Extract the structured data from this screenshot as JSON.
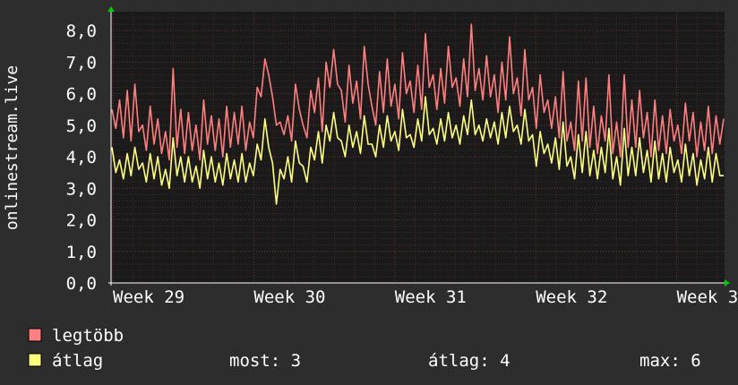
{
  "chart_data": {
    "type": "line",
    "ylabel": "onlinestream.live",
    "ylim": [
      0,
      8.6
    ],
    "y_ticks": [
      "0,0",
      "1,0",
      "2,0",
      "3,0",
      "4,0",
      "5,0",
      "6,0",
      "7,0",
      "8,0"
    ],
    "x_ticks": [
      "Week 29",
      "Week 30",
      "Week 31",
      "Week 32",
      "Week 3"
    ],
    "grid": true,
    "legend_position": "bottom-left",
    "series": [
      {
        "name": "legtöbb",
        "color": "#ff7f7f",
        "values": [
          5.5,
          4.9,
          5.8,
          4.6,
          6.1,
          4.5,
          6.3,
          4.8,
          5.0,
          4.2,
          5.6,
          4.4,
          5.2,
          4.1,
          4.8,
          3.9,
          6.8,
          4.3,
          5.5,
          4.1,
          5.4,
          4.2,
          5.0,
          3.9,
          5.8,
          4.4,
          5.3,
          4.2,
          5.2,
          4.0,
          5.6,
          4.3,
          5.4,
          4.4,
          5.6,
          4.2,
          5.1,
          4.6,
          6.2,
          5.9,
          7.1,
          6.6,
          5.9,
          5.0,
          5.1,
          4.7,
          5.3,
          4.5,
          6.3,
          5.5,
          5.0,
          4.6,
          6.1,
          5.4,
          6.5,
          4.8,
          7.0,
          6.2,
          7.4,
          6.3,
          6.1,
          5.1,
          6.9,
          5.7,
          6.4,
          5.2,
          7.5,
          6.3,
          5.6,
          5.0,
          6.7,
          5.4,
          7.1,
          5.6,
          6.3,
          5.2,
          7.3,
          6.0,
          6.4,
          5.4,
          6.9,
          5.5,
          7.9,
          6.2,
          6.6,
          5.5,
          6.8,
          5.7,
          7.5,
          6.2,
          6.5,
          5.6,
          7.1,
          5.9,
          8.2,
          6.1,
          6.8,
          5.8,
          7.2,
          5.9,
          6.6,
          5.4,
          7.0,
          5.8,
          7.8,
          6.0,
          6.5,
          5.3,
          7.4,
          5.8,
          6.2,
          4.9,
          6.6,
          5.4,
          5.8,
          4.9,
          5.9,
          4.6,
          6.7,
          4.5,
          5.1,
          4.2,
          6.4,
          4.5,
          6.5,
          4.3,
          5.6,
          4.1,
          5.3,
          4.5,
          6.6,
          4.1,
          5.1,
          4.0,
          6.6,
          4.3,
          5.8,
          4.3,
          6.1,
          4.6,
          5.4,
          4.0,
          5.8,
          4.2,
          5.3,
          4.1,
          5.5,
          4.5,
          5.0,
          4.1,
          5.7,
          4.5,
          5.4,
          4.0,
          5.1,
          4.2,
          5.6,
          4.1,
          5.3,
          4.4,
          5.2
        ]
      },
      {
        "name": "átlag",
        "color": "#ffff7f",
        "values": [
          4.3,
          3.5,
          3.9,
          3.3,
          4.1,
          3.4,
          4.3,
          3.6,
          3.8,
          3.2,
          4.1,
          3.3,
          4.0,
          3.1,
          3.6,
          3.0,
          4.6,
          3.4,
          4.0,
          3.2,
          4.0,
          3.2,
          3.7,
          3.0,
          4.2,
          3.3,
          4.0,
          3.2,
          3.8,
          3.1,
          4.1,
          3.3,
          3.9,
          3.2,
          4.1,
          3.2,
          3.8,
          3.4,
          4.4,
          3.9,
          5.2,
          4.3,
          3.8,
          2.5,
          3.6,
          3.3,
          4.0,
          3.2,
          4.5,
          3.8,
          3.7,
          3.2,
          4.3,
          3.9,
          4.8,
          3.8,
          5.0,
          4.5,
          5.4,
          4.6,
          4.5,
          4.0,
          5.0,
          4.3,
          4.8,
          4.1,
          5.3,
          4.4,
          4.4,
          4.0,
          5.0,
          4.3,
          5.3,
          4.5,
          4.8,
          4.2,
          5.5,
          4.6,
          4.7,
          4.3,
          5.2,
          4.5,
          5.9,
          4.7,
          4.9,
          4.4,
          5.2,
          4.5,
          5.4,
          4.6,
          5.0,
          4.4,
          5.3,
          4.7,
          5.8,
          4.7,
          5.0,
          4.5,
          5.2,
          4.6,
          5.1,
          4.4,
          5.4,
          4.6,
          5.6,
          4.8,
          5.0,
          4.4,
          5.5,
          4.5,
          4.7,
          3.7,
          4.8,
          4.1,
          4.4,
          3.8,
          4.6,
          3.6,
          5.1,
          3.7,
          4.0,
          3.3,
          4.7,
          3.5,
          4.8,
          3.4,
          4.2,
          3.3,
          4.3,
          3.5,
          4.9,
          3.3,
          4.0,
          3.1,
          4.9,
          3.4,
          4.3,
          3.4,
          4.6,
          3.5,
          4.2,
          3.2,
          4.5,
          3.3,
          4.1,
          3.2,
          4.3,
          3.5,
          3.9,
          3.2,
          4.4,
          3.4,
          4.1,
          3.1,
          3.9,
          3.3,
          4.3,
          3.2,
          4.1,
          3.4,
          3.4
        ]
      }
    ]
  },
  "legend": {
    "items": [
      {
        "label": "legtöbb",
        "color": "#ff7f7f"
      },
      {
        "label": "átlag",
        "color": "#ffff7f"
      }
    ],
    "stats": {
      "most": "most: 3",
      "atlag": "átlag: 4",
      "max": "max: 6"
    }
  },
  "colors": {
    "background": "#2d2d2d",
    "plot_background": "#1a1a1a",
    "grid_minor": "#4a2626",
    "grid_major": "#6b3030",
    "axis_arrow": "#00cc00"
  }
}
